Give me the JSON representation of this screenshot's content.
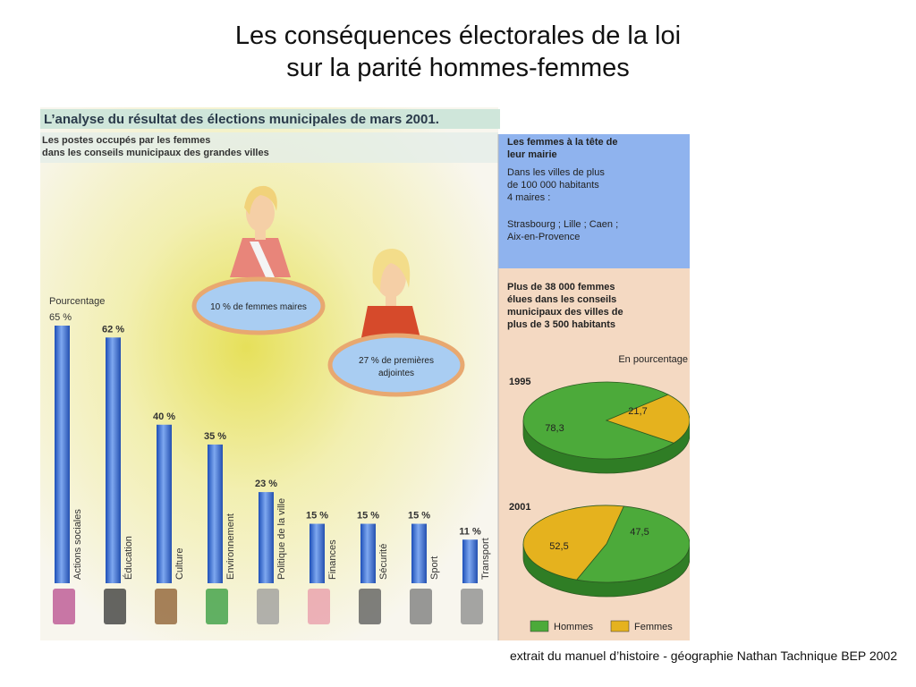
{
  "slide": {
    "title_line1": "Les conséquences électorales de la loi",
    "title_line2": "sur la parité hommes-femmes",
    "credit": "extrait du manuel d’histoire - géographie Nathan Tachnique BEP 2002"
  },
  "scan": {
    "banner": "L’analyse du résultat des élections municipales de mars 2001.",
    "left_heading_line1": "Les postes occupés par les femmes",
    "left_heading_line2": "dans les conseils municipaux des grandes villes",
    "bubble_maires": "10 % de femmes maires",
    "bubble_adjointes_line1": "27 % de premières",
    "bubble_adjointes_line2": "adjointes",
    "right_top": {
      "heading_line1": "Les femmes à la tête de",
      "heading_line2": "leur mairie",
      "text_line1": "Dans les villes de plus",
      "text_line2": "de 100 000 habitants",
      "text_line3": "4 maires :",
      "cities_line1": "Strasbourg ; Lille ; Caen ;",
      "cities_line2": "Aix-en-Provence"
    },
    "right_bottom": {
      "heading_line1": "Plus de 38 000 femmes",
      "heading_line2": "élues dans les conseils",
      "heading_line3": "municipaux des villes de",
      "heading_line4": "plus de 3 500 habitants",
      "unit_label": "En pourcentage"
    }
  },
  "colors": {
    "bar": "#3a6fd0",
    "hommes": "#4caa3a",
    "femmes": "#e5b21e",
    "blue_panel": "#8fb3ee",
    "peach_panel": "#f4d9c2"
  },
  "chart_data": [
    {
      "type": "bar",
      "title": "Les postes occupés par les femmes dans les conseils municipaux des grandes villes",
      "ylabel": "Pourcentage",
      "ylim": [
        0,
        65
      ],
      "top_tick_label": "65 %",
      "categories": [
        "Actions sociales",
        "Éducation",
        "Culture",
        "Environnement",
        "Politique de la ville",
        "Finances",
        "Sécurité",
        "Sport",
        "Transport"
      ],
      "values": [
        65,
        62,
        40,
        35,
        23,
        15,
        15,
        15,
        11
      ],
      "value_labels": [
        "",
        "62 %",
        "40 %",
        "35 %",
        "23 %",
        "15 %",
        "15 %",
        "15 %",
        "11 %"
      ]
    },
    {
      "type": "pie",
      "title": "1995",
      "unit": "En pourcentage",
      "labels": [
        "Hommes",
        "Femmes"
      ],
      "values": [
        78.3,
        21.7
      ],
      "value_labels": [
        "78,3",
        "21,7"
      ]
    },
    {
      "type": "pie",
      "title": "2001",
      "unit": "En pourcentage",
      "labels": [
        "Hommes",
        "Femmes"
      ],
      "values": [
        52.5,
        47.5
      ],
      "value_labels": [
        "52,5",
        "47,5"
      ]
    }
  ]
}
